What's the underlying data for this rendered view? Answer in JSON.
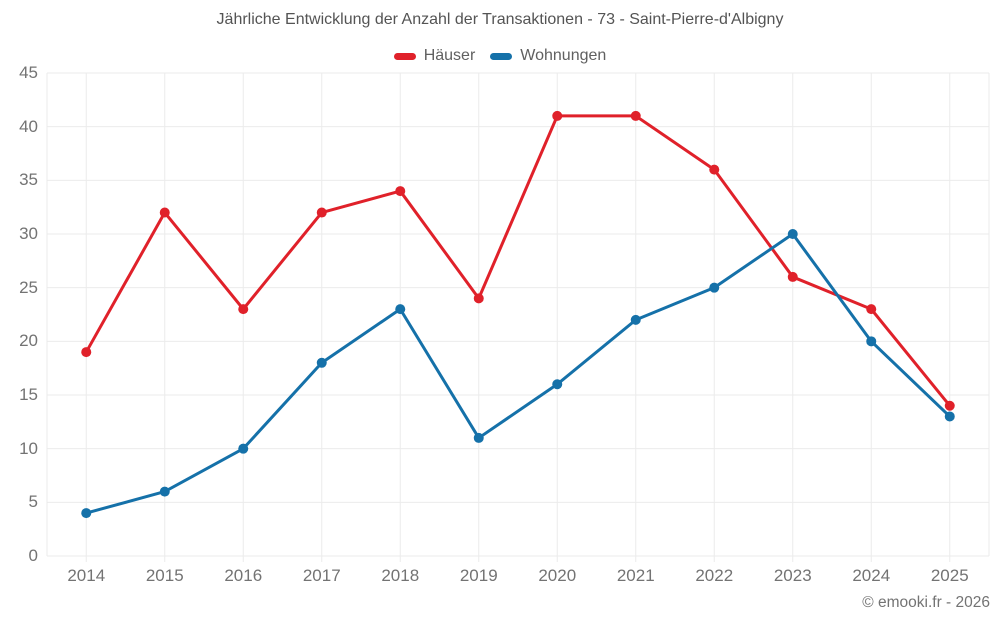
{
  "title": "Jährliche Entwicklung der Anzahl der Transaktionen - 73 - Saint-Pierre-d'Albigny",
  "copyright": "© emooki.fr - 2026",
  "style": {
    "background": "#ffffff",
    "grid_color": "#ebebeb",
    "tick_color": "#737373",
    "title_color": "#545454",
    "legend_text_color": "#606060"
  },
  "chart_data": {
    "type": "line",
    "title": "Jährliche Entwicklung der Anzahl der Transaktionen - 73 - Saint-Pierre-d'Albigny",
    "categories": [
      "2014",
      "2015",
      "2016",
      "2017",
      "2018",
      "2019",
      "2020",
      "2021",
      "2022",
      "2023",
      "2024",
      "2025"
    ],
    "series": [
      {
        "name": "Häuser",
        "color": "#e0212a",
        "values": [
          19,
          32,
          23,
          32,
          34,
          24,
          41,
          41,
          36,
          26,
          23,
          14
        ]
      },
      {
        "name": "Wohnungen",
        "color": "#1571a9",
        "values": [
          4,
          6,
          10,
          18,
          23,
          11,
          16,
          22,
          25,
          30,
          20,
          13
        ]
      }
    ],
    "xlabel": "",
    "ylabel": "",
    "ylim": [
      0,
      45
    ],
    "ytick_step": 5,
    "grid": true,
    "legend_position": "top",
    "marker": "circle"
  }
}
